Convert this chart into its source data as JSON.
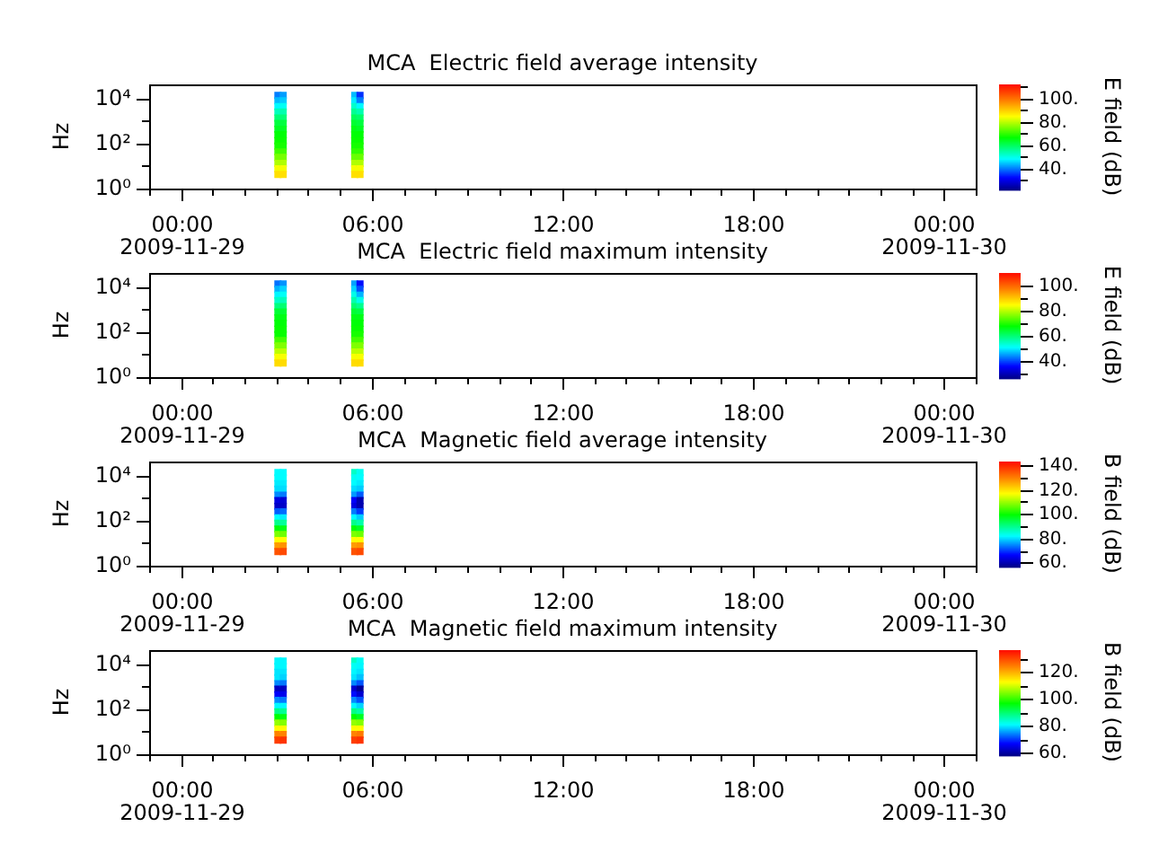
{
  "chart_data": [
    {
      "type": "scatter",
      "title": "MCA  Electric field average intensity",
      "ylabel": "Hz",
      "clabel": "E field (dB)",
      "marker": "square",
      "log": "y",
      "x": [
        "2009-11-29T03:03",
        "2009-11-29T03:03",
        "2009-11-29T03:03",
        "2009-11-29T03:03",
        "2009-11-29T03:03",
        "2009-11-29T03:03",
        "2009-11-29T03:03",
        "2009-11-29T03:03",
        "2009-11-29T03:03",
        "2009-11-29T03:03",
        "2009-11-29T03:03",
        "2009-11-29T03:03",
        "2009-11-29T03:03",
        "2009-11-29T03:03",
        "2009-11-29T03:03",
        "2009-11-29T03:13",
        "2009-11-29T03:13",
        "2009-11-29T03:13",
        "2009-11-29T03:13",
        "2009-11-29T03:13",
        "2009-11-29T03:13",
        "2009-11-29T03:13",
        "2009-11-29T03:13",
        "2009-11-29T03:13",
        "2009-11-29T03:13",
        "2009-11-29T03:13",
        "2009-11-29T03:13",
        "2009-11-29T03:13",
        "2009-11-29T03:13",
        "2009-11-29T03:13",
        "2009-11-29T05:28",
        "2009-11-29T05:28",
        "2009-11-29T05:28",
        "2009-11-29T05:28",
        "2009-11-29T05:28",
        "2009-11-29T05:28",
        "2009-11-29T05:28",
        "2009-11-29T05:28",
        "2009-11-29T05:28",
        "2009-11-29T05:28",
        "2009-11-29T05:28",
        "2009-11-29T05:28",
        "2009-11-29T05:28",
        "2009-11-29T05:28",
        "2009-11-29T05:28",
        "2009-11-29T05:38",
        "2009-11-29T05:38",
        "2009-11-29T05:38",
        "2009-11-29T05:38",
        "2009-11-29T05:38",
        "2009-11-29T05:38",
        "2009-11-29T05:38",
        "2009-11-29T05:38",
        "2009-11-29T05:38",
        "2009-11-29T05:38",
        "2009-11-29T05:38",
        "2009-11-29T05:38",
        "2009-11-29T05:38",
        "2009-11-29T05:38",
        "2009-11-29T05:38"
      ],
      "values": [
        13000,
        7500,
        4200,
        2400,
        1300,
        750,
        420,
        240,
        130,
        75,
        42,
        24,
        13,
        7.5,
        4.2,
        13000,
        7500,
        4200,
        2400,
        1300,
        750,
        420,
        240,
        130,
        75,
        42,
        24,
        13,
        7.5,
        4.2,
        13000,
        7500,
        4200,
        2400,
        1300,
        750,
        420,
        240,
        130,
        75,
        42,
        24,
        13,
        7.5,
        4.2,
        13000,
        7500,
        4200,
        2400,
        1300,
        750,
        420,
        240,
        130,
        75,
        42,
        24,
        13,
        7.5,
        4.2
      ],
      "cvalues": [
        40,
        44,
        48,
        53,
        58,
        62,
        64,
        66,
        67,
        68,
        71,
        75,
        79,
        84,
        88,
        42,
        45,
        49,
        54,
        58,
        62,
        64,
        66,
        67,
        68,
        71,
        75,
        79,
        84,
        88,
        44,
        47,
        52,
        56,
        60,
        63,
        65,
        66,
        67,
        68,
        70,
        74,
        79,
        84,
        88,
        35,
        40,
        48,
        54,
        59,
        62,
        64,
        66,
        67,
        68,
        70,
        74,
        79,
        84,
        88
      ],
      "clim": [
        21,
        112
      ],
      "cticks": [
        {
          "value": 30,
          "label": null
        },
        {
          "value": 40,
          "label": "40."
        },
        {
          "value": 50,
          "label": null
        },
        {
          "value": 60,
          "label": "60."
        },
        {
          "value": 70,
          "label": null
        },
        {
          "value": 80,
          "label": "80."
        },
        {
          "value": 90,
          "label": null
        },
        {
          "value": 100,
          "label": "100."
        },
        {
          "value": 110,
          "label": null
        }
      ],
      "xlim": [
        "2009-11-28T23:00",
        "2009-11-30T01:00"
      ],
      "xticks": [
        {
          "value": "2009-11-28T23:00",
          "label": null
        },
        {
          "value": "2009-11-29T00:00",
          "label": "00:00\n2009-11-29"
        },
        {
          "value": "2009-11-29T01:00",
          "label": null
        },
        {
          "value": "2009-11-29T02:00",
          "label": null
        },
        {
          "value": "2009-11-29T03:00",
          "label": null
        },
        {
          "value": "2009-11-29T04:00",
          "label": null
        },
        {
          "value": "2009-11-29T05:00",
          "label": null
        },
        {
          "value": "2009-11-29T06:00",
          "label": "06:00"
        },
        {
          "value": "2009-11-29T07:00",
          "label": null
        },
        {
          "value": "2009-11-29T08:00",
          "label": null
        },
        {
          "value": "2009-11-29T09:00",
          "label": null
        },
        {
          "value": "2009-11-29T10:00",
          "label": null
        },
        {
          "value": "2009-11-29T11:00",
          "label": null
        },
        {
          "value": "2009-11-29T12:00",
          "label": "12:00"
        },
        {
          "value": "2009-11-29T13:00",
          "label": null
        },
        {
          "value": "2009-11-29T14:00",
          "label": null
        },
        {
          "value": "2009-11-29T15:00",
          "label": null
        },
        {
          "value": "2009-11-29T16:00",
          "label": null
        },
        {
          "value": "2009-11-29T17:00",
          "label": null
        },
        {
          "value": "2009-11-29T18:00",
          "label": "18:00"
        },
        {
          "value": "2009-11-29T19:00",
          "label": null
        },
        {
          "value": "2009-11-29T20:00",
          "label": null
        },
        {
          "value": "2009-11-29T21:00",
          "label": null
        },
        {
          "value": "2009-11-29T22:00",
          "label": null
        },
        {
          "value": "2009-11-29T23:00",
          "label": null
        },
        {
          "value": "2009-11-30T00:00",
          "label": "00:00\n2009-11-30"
        },
        {
          "value": "2009-11-30T01:00",
          "label": null
        }
      ],
      "ylim": [
        1,
        40000
      ],
      "yticks": [
        {
          "value": 1,
          "label": "10⁰"
        },
        {
          "value": 10,
          "label": null
        },
        {
          "value": 100,
          "label": "10²"
        },
        {
          "value": 1000,
          "label": null
        },
        {
          "value": 10000,
          "label": "10⁴"
        }
      ]
    },
    {
      "type": "scatter",
      "title": "MCA  Electric field maximum intensity",
      "ylabel": "Hz",
      "clabel": "E field (dB)",
      "marker": "square",
      "log": "y",
      "x": [
        "2009-11-29T03:03",
        "2009-11-29T03:03",
        "2009-11-29T03:03",
        "2009-11-29T03:03",
        "2009-11-29T03:03",
        "2009-11-29T03:03",
        "2009-11-29T03:03",
        "2009-11-29T03:03",
        "2009-11-29T03:03",
        "2009-11-29T03:03",
        "2009-11-29T03:03",
        "2009-11-29T03:03",
        "2009-11-29T03:03",
        "2009-11-29T03:03",
        "2009-11-29T03:03",
        "2009-11-29T03:13",
        "2009-11-29T03:13",
        "2009-11-29T03:13",
        "2009-11-29T03:13",
        "2009-11-29T03:13",
        "2009-11-29T03:13",
        "2009-11-29T03:13",
        "2009-11-29T03:13",
        "2009-11-29T03:13",
        "2009-11-29T03:13",
        "2009-11-29T03:13",
        "2009-11-29T03:13",
        "2009-11-29T03:13",
        "2009-11-29T03:13",
        "2009-11-29T03:13",
        "2009-11-29T05:28",
        "2009-11-29T05:28",
        "2009-11-29T05:28",
        "2009-11-29T05:28",
        "2009-11-29T05:28",
        "2009-11-29T05:28",
        "2009-11-29T05:28",
        "2009-11-29T05:28",
        "2009-11-29T05:28",
        "2009-11-29T05:28",
        "2009-11-29T05:28",
        "2009-11-29T05:28",
        "2009-11-29T05:28",
        "2009-11-29T05:28",
        "2009-11-29T05:28",
        "2009-11-29T05:38",
        "2009-11-29T05:38",
        "2009-11-29T05:38",
        "2009-11-29T05:38",
        "2009-11-29T05:38",
        "2009-11-29T05:38",
        "2009-11-29T05:38",
        "2009-11-29T05:38",
        "2009-11-29T05:38",
        "2009-11-29T05:38",
        "2009-11-29T05:38",
        "2009-11-29T05:38",
        "2009-11-29T05:38",
        "2009-11-29T05:38",
        "2009-11-29T05:38"
      ],
      "values": [
        13000,
        7500,
        4200,
        2400,
        1300,
        750,
        420,
        240,
        130,
        75,
        42,
        24,
        13,
        7.5,
        4.2,
        13000,
        7500,
        4200,
        2400,
        1300,
        750,
        420,
        240,
        130,
        75,
        42,
        24,
        13,
        7.5,
        4.2,
        13000,
        7500,
        4200,
        2400,
        1300,
        750,
        420,
        240,
        130,
        75,
        42,
        24,
        13,
        7.5,
        4.2,
        13000,
        7500,
        4200,
        2400,
        1300,
        750,
        420,
        240,
        130,
        75,
        42,
        24,
        13,
        7.5,
        4.2
      ],
      "cvalues": [
        42,
        46,
        50,
        54,
        59,
        64,
        66,
        67,
        68,
        68,
        72,
        76,
        80,
        84,
        88,
        44,
        48,
        51,
        55,
        60,
        64,
        66,
        67,
        68,
        68,
        72,
        76,
        80,
        84,
        88,
        45,
        48,
        52,
        56,
        60,
        64,
        66,
        67,
        68,
        69,
        72,
        76,
        80,
        84,
        88,
        36,
        40,
        46,
        52,
        58,
        63,
        66,
        67,
        68,
        69,
        72,
        76,
        80,
        84,
        88
      ],
      "clim": [
        25,
        110
      ],
      "cticks": [
        {
          "value": 30,
          "label": null
        },
        {
          "value": 40,
          "label": "40."
        },
        {
          "value": 50,
          "label": null
        },
        {
          "value": 60,
          "label": "60."
        },
        {
          "value": 70,
          "label": null
        },
        {
          "value": 80,
          "label": "80."
        },
        {
          "value": 90,
          "label": null
        },
        {
          "value": 100,
          "label": "100."
        }
      ],
      "xlim": [
        "2009-11-28T23:00",
        "2009-11-30T01:00"
      ],
      "xticks": [
        {
          "value": "2009-11-28T23:00",
          "label": null
        },
        {
          "value": "2009-11-29T00:00",
          "label": "00:00\n2009-11-29"
        },
        {
          "value": "2009-11-29T01:00",
          "label": null
        },
        {
          "value": "2009-11-29T02:00",
          "label": null
        },
        {
          "value": "2009-11-29T03:00",
          "label": null
        },
        {
          "value": "2009-11-29T04:00",
          "label": null
        },
        {
          "value": "2009-11-29T05:00",
          "label": null
        },
        {
          "value": "2009-11-29T06:00",
          "label": "06:00"
        },
        {
          "value": "2009-11-29T07:00",
          "label": null
        },
        {
          "value": "2009-11-29T08:00",
          "label": null
        },
        {
          "value": "2009-11-29T09:00",
          "label": null
        },
        {
          "value": "2009-11-29T10:00",
          "label": null
        },
        {
          "value": "2009-11-29T11:00",
          "label": null
        },
        {
          "value": "2009-11-29T12:00",
          "label": "12:00"
        },
        {
          "value": "2009-11-29T13:00",
          "label": null
        },
        {
          "value": "2009-11-29T14:00",
          "label": null
        },
        {
          "value": "2009-11-29T15:00",
          "label": null
        },
        {
          "value": "2009-11-29T16:00",
          "label": null
        },
        {
          "value": "2009-11-29T17:00",
          "label": null
        },
        {
          "value": "2009-11-29T18:00",
          "label": "18:00"
        },
        {
          "value": "2009-11-29T19:00",
          "label": null
        },
        {
          "value": "2009-11-29T20:00",
          "label": null
        },
        {
          "value": "2009-11-29T21:00",
          "label": null
        },
        {
          "value": "2009-11-29T22:00",
          "label": null
        },
        {
          "value": "2009-11-29T23:00",
          "label": null
        },
        {
          "value": "2009-11-30T00:00",
          "label": "00:00\n2009-11-30"
        },
        {
          "value": "2009-11-30T01:00",
          "label": null
        }
      ],
      "ylim": [
        1,
        40000
      ],
      "yticks": [
        {
          "value": 1,
          "label": "10⁰"
        },
        {
          "value": 10,
          "label": null
        },
        {
          "value": 100,
          "label": "10²"
        },
        {
          "value": 1000,
          "label": null
        },
        {
          "value": 10000,
          "label": "10⁴"
        }
      ]
    },
    {
      "type": "scatter",
      "title": "MCA  Magnetic field average intensity",
      "ylabel": "Hz",
      "clabel": "B field (dB)",
      "marker": "square",
      "log": "y",
      "x": [
        "2009-11-29T03:03",
        "2009-11-29T03:03",
        "2009-11-29T03:03",
        "2009-11-29T03:03",
        "2009-11-29T03:03",
        "2009-11-29T03:03",
        "2009-11-29T03:03",
        "2009-11-29T03:03",
        "2009-11-29T03:03",
        "2009-11-29T03:03",
        "2009-11-29T03:03",
        "2009-11-29T03:03",
        "2009-11-29T03:03",
        "2009-11-29T03:03",
        "2009-11-29T03:03",
        "2009-11-29T03:13",
        "2009-11-29T03:13",
        "2009-11-29T03:13",
        "2009-11-29T03:13",
        "2009-11-29T03:13",
        "2009-11-29T03:13",
        "2009-11-29T03:13",
        "2009-11-29T03:13",
        "2009-11-29T03:13",
        "2009-11-29T03:13",
        "2009-11-29T03:13",
        "2009-11-29T03:13",
        "2009-11-29T03:13",
        "2009-11-29T03:13",
        "2009-11-29T03:13",
        "2009-11-29T05:28",
        "2009-11-29T05:28",
        "2009-11-29T05:28",
        "2009-11-29T05:28",
        "2009-11-29T05:28",
        "2009-11-29T05:28",
        "2009-11-29T05:28",
        "2009-11-29T05:28",
        "2009-11-29T05:28",
        "2009-11-29T05:28",
        "2009-11-29T05:28",
        "2009-11-29T05:28",
        "2009-11-29T05:28",
        "2009-11-29T05:28",
        "2009-11-29T05:28",
        "2009-11-29T05:38",
        "2009-11-29T05:38",
        "2009-11-29T05:38",
        "2009-11-29T05:38",
        "2009-11-29T05:38",
        "2009-11-29T05:38",
        "2009-11-29T05:38",
        "2009-11-29T05:38",
        "2009-11-29T05:38",
        "2009-11-29T05:38",
        "2009-11-29T05:38",
        "2009-11-29T05:38",
        "2009-11-29T05:38",
        "2009-11-29T05:38",
        "2009-11-29T05:38"
      ],
      "values": [
        13000,
        7500,
        4200,
        2400,
        1300,
        750,
        420,
        240,
        130,
        75,
        42,
        24,
        13,
        7.5,
        4.2,
        13000,
        7500,
        4200,
        2400,
        1300,
        750,
        420,
        240,
        130,
        75,
        42,
        24,
        13,
        7.5,
        4.2,
        13000,
        7500,
        4200,
        2400,
        1300,
        750,
        420,
        240,
        130,
        75,
        42,
        24,
        13,
        7.5,
        4.2,
        13000,
        7500,
        4200,
        2400,
        1300,
        750,
        420,
        240,
        130,
        75,
        42,
        24,
        13,
        7.5,
        4.2
      ],
      "cvalues": [
        82,
        82,
        81,
        80,
        75,
        64,
        62,
        72,
        82,
        90,
        99,
        108,
        117,
        127,
        135,
        82,
        82,
        81,
        80,
        74,
        63,
        62,
        73,
        81,
        89,
        98,
        107,
        117,
        128,
        136,
        86,
        83,
        82,
        80,
        76,
        66,
        64,
        74,
        82,
        90,
        99,
        108,
        117,
        127,
        135,
        83,
        82,
        81,
        79,
        72,
        60,
        60,
        70,
        79,
        88,
        97,
        107,
        117,
        128,
        136
      ],
      "clim": [
        56,
        143
      ],
      "cticks": [
        {
          "value": 60,
          "label": "60."
        },
        {
          "value": 70,
          "label": null
        },
        {
          "value": 80,
          "label": "80."
        },
        {
          "value": 90,
          "label": null
        },
        {
          "value": 100,
          "label": "100."
        },
        {
          "value": 110,
          "label": null
        },
        {
          "value": 120,
          "label": "120."
        },
        {
          "value": 130,
          "label": null
        },
        {
          "value": 140,
          "label": "140."
        }
      ],
      "xlim": [
        "2009-11-28T23:00",
        "2009-11-30T01:00"
      ],
      "xticks": [
        {
          "value": "2009-11-28T23:00",
          "label": null
        },
        {
          "value": "2009-11-29T00:00",
          "label": "00:00\n2009-11-29"
        },
        {
          "value": "2009-11-29T01:00",
          "label": null
        },
        {
          "value": "2009-11-29T02:00",
          "label": null
        },
        {
          "value": "2009-11-29T03:00",
          "label": null
        },
        {
          "value": "2009-11-29T04:00",
          "label": null
        },
        {
          "value": "2009-11-29T05:00",
          "label": null
        },
        {
          "value": "2009-11-29T06:00",
          "label": "06:00"
        },
        {
          "value": "2009-11-29T07:00",
          "label": null
        },
        {
          "value": "2009-11-29T08:00",
          "label": null
        },
        {
          "value": "2009-11-29T09:00",
          "label": null
        },
        {
          "value": "2009-11-29T10:00",
          "label": null
        },
        {
          "value": "2009-11-29T11:00",
          "label": null
        },
        {
          "value": "2009-11-29T12:00",
          "label": "12:00"
        },
        {
          "value": "2009-11-29T13:00",
          "label": null
        },
        {
          "value": "2009-11-29T14:00",
          "label": null
        },
        {
          "value": "2009-11-29T15:00",
          "label": null
        },
        {
          "value": "2009-11-29T16:00",
          "label": null
        },
        {
          "value": "2009-11-29T17:00",
          "label": null
        },
        {
          "value": "2009-11-29T18:00",
          "label": "18:00"
        },
        {
          "value": "2009-11-29T19:00",
          "label": null
        },
        {
          "value": "2009-11-29T20:00",
          "label": null
        },
        {
          "value": "2009-11-29T21:00",
          "label": null
        },
        {
          "value": "2009-11-29T22:00",
          "label": null
        },
        {
          "value": "2009-11-29T23:00",
          "label": null
        },
        {
          "value": "2009-11-30T00:00",
          "label": "00:00\n2009-11-30"
        },
        {
          "value": "2009-11-30T01:00",
          "label": null
        }
      ],
      "ylim": [
        1,
        40000
      ],
      "yticks": [
        {
          "value": 1,
          "label": "10⁰"
        },
        {
          "value": 10,
          "label": null
        },
        {
          "value": 100,
          "label": "10²"
        },
        {
          "value": 1000,
          "label": null
        },
        {
          "value": 10000,
          "label": "10⁴"
        }
      ]
    },
    {
      "type": "scatter",
      "title": "MCA  Magnetic field maximum intensity",
      "ylabel": "Hz",
      "clabel": "B field (dB)",
      "marker": "square",
      "log": "y",
      "x": [
        "2009-11-29T03:03",
        "2009-11-29T03:03",
        "2009-11-29T03:03",
        "2009-11-29T03:03",
        "2009-11-29T03:03",
        "2009-11-29T03:03",
        "2009-11-29T03:03",
        "2009-11-29T03:03",
        "2009-11-29T03:03",
        "2009-11-29T03:03",
        "2009-11-29T03:03",
        "2009-11-29T03:03",
        "2009-11-29T03:03",
        "2009-11-29T03:03",
        "2009-11-29T03:03",
        "2009-11-29T03:13",
        "2009-11-29T03:13",
        "2009-11-29T03:13",
        "2009-11-29T03:13",
        "2009-11-29T03:13",
        "2009-11-29T03:13",
        "2009-11-29T03:13",
        "2009-11-29T03:13",
        "2009-11-29T03:13",
        "2009-11-29T03:13",
        "2009-11-29T03:13",
        "2009-11-29T03:13",
        "2009-11-29T03:13",
        "2009-11-29T03:13",
        "2009-11-29T03:13",
        "2009-11-29T05:28",
        "2009-11-29T05:28",
        "2009-11-29T05:28",
        "2009-11-29T05:28",
        "2009-11-29T05:28",
        "2009-11-29T05:28",
        "2009-11-29T05:28",
        "2009-11-29T05:28",
        "2009-11-29T05:28",
        "2009-11-29T05:28",
        "2009-11-29T05:28",
        "2009-11-29T05:28",
        "2009-11-29T05:28",
        "2009-11-29T05:28",
        "2009-11-29T05:28",
        "2009-11-29T05:38",
        "2009-11-29T05:38",
        "2009-11-29T05:38",
        "2009-11-29T05:38",
        "2009-11-29T05:38",
        "2009-11-29T05:38",
        "2009-11-29T05:38",
        "2009-11-29T05:38",
        "2009-11-29T05:38",
        "2009-11-29T05:38",
        "2009-11-29T05:38",
        "2009-11-29T05:38",
        "2009-11-29T05:38",
        "2009-11-29T05:38",
        "2009-11-29T05:38"
      ],
      "values": [
        13000,
        7500,
        4200,
        2400,
        1300,
        750,
        420,
        240,
        130,
        75,
        42,
        24,
        13,
        7.5,
        4.2,
        13000,
        7500,
        4200,
        2400,
        1300,
        750,
        420,
        240,
        130,
        75,
        42,
        24,
        13,
        7.5,
        4.2,
        13000,
        7500,
        4200,
        2400,
        1300,
        750,
        420,
        240,
        130,
        75,
        42,
        24,
        13,
        7.5,
        4.2,
        13000,
        7500,
        4200,
        2400,
        1300,
        750,
        420,
        240,
        130,
        75,
        42,
        24,
        13,
        7.5,
        4.2
      ],
      "cvalues": [
        81,
        81,
        80,
        80,
        75,
        63,
        67,
        75,
        81,
        89,
        97,
        106,
        113,
        124,
        131,
        81,
        81,
        80,
        79,
        74,
        63,
        66,
        74,
        81,
        88,
        96,
        105,
        113,
        124,
        132,
        85,
        82,
        81,
        80,
        75,
        64,
        68,
        75,
        81,
        89,
        97,
        106,
        113,
        124,
        131,
        82,
        81,
        80,
        78,
        72,
        60,
        64,
        72,
        79,
        87,
        95,
        105,
        113,
        125,
        132
      ],
      "clim": [
        58,
        136
      ],
      "cticks": [
        {
          "value": 60,
          "label": "60."
        },
        {
          "value": 70,
          "label": null
        },
        {
          "value": 80,
          "label": "80."
        },
        {
          "value": 90,
          "label": null
        },
        {
          "value": 100,
          "label": "100."
        },
        {
          "value": 110,
          "label": null
        },
        {
          "value": 120,
          "label": "120."
        },
        {
          "value": 130,
          "label": null
        }
      ],
      "xlim": [
        "2009-11-28T23:00",
        "2009-11-30T01:00"
      ],
      "xticks": [
        {
          "value": "2009-11-28T23:00",
          "label": null
        },
        {
          "value": "2009-11-29T00:00",
          "label": "00:00\n2009-11-29"
        },
        {
          "value": "2009-11-29T01:00",
          "label": null
        },
        {
          "value": "2009-11-29T02:00",
          "label": null
        },
        {
          "value": "2009-11-29T03:00",
          "label": null
        },
        {
          "value": "2009-11-29T04:00",
          "label": null
        },
        {
          "value": "2009-11-29T05:00",
          "label": null
        },
        {
          "value": "2009-11-29T06:00",
          "label": "06:00"
        },
        {
          "value": "2009-11-29T07:00",
          "label": null
        },
        {
          "value": "2009-11-29T08:00",
          "label": null
        },
        {
          "value": "2009-11-29T09:00",
          "label": null
        },
        {
          "value": "2009-11-29T10:00",
          "label": null
        },
        {
          "value": "2009-11-29T11:00",
          "label": null
        },
        {
          "value": "2009-11-29T12:00",
          "label": "12:00"
        },
        {
          "value": "2009-11-29T13:00",
          "label": null
        },
        {
          "value": "2009-11-29T14:00",
          "label": null
        },
        {
          "value": "2009-11-29T15:00",
          "label": null
        },
        {
          "value": "2009-11-29T16:00",
          "label": null
        },
        {
          "value": "2009-11-29T17:00",
          "label": null
        },
        {
          "value": "2009-11-29T18:00",
          "label": "18:00"
        },
        {
          "value": "2009-11-29T19:00",
          "label": null
        },
        {
          "value": "2009-11-29T20:00",
          "label": null
        },
        {
          "value": "2009-11-29T21:00",
          "label": null
        },
        {
          "value": "2009-11-29T22:00",
          "label": null
        },
        {
          "value": "2009-11-29T23:00",
          "label": null
        },
        {
          "value": "2009-11-30T00:00",
          "label": "00:00\n2009-11-30"
        },
        {
          "value": "2009-11-30T01:00",
          "label": null
        }
      ],
      "ylim": [
        1,
        40000
      ],
      "yticks": [
        {
          "value": 1,
          "label": "10⁰"
        },
        {
          "value": 10,
          "label": null
        },
        {
          "value": 100,
          "label": "10²"
        },
        {
          "value": 1000,
          "label": null
        },
        {
          "value": 10000,
          "label": "10⁴"
        }
      ]
    }
  ]
}
